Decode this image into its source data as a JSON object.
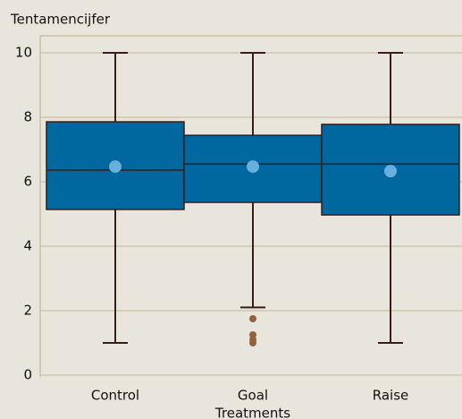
{
  "chart_data": {
    "type": "box",
    "y_label": "Tentamencijfer",
    "x_label": "Treatments",
    "categories": [
      "Control",
      "Goal",
      "Raise"
    ],
    "whisker_low": [
      1,
      2.1,
      1
    ],
    "q1": [
      5.14,
      5.36,
      4.97
    ],
    "median": [
      6.36,
      6.55,
      6.55
    ],
    "q3": [
      7.86,
      7.44,
      7.78
    ],
    "whisker_high": [
      10,
      10,
      10
    ],
    "mean": [
      6.47,
      6.47,
      6.33
    ],
    "outliers": [
      [],
      [
        1.75,
        1.25,
        1.1,
        1.0
      ],
      []
    ],
    "ylim": [
      0,
      10
    ],
    "yticks": [
      0,
      2,
      4,
      6,
      8,
      10
    ],
    "grid": true,
    "box_color": "#00679f",
    "line_color": "#3a1d17",
    "mean_color": "#6aaedd",
    "outlier_color": "#94603f"
  }
}
